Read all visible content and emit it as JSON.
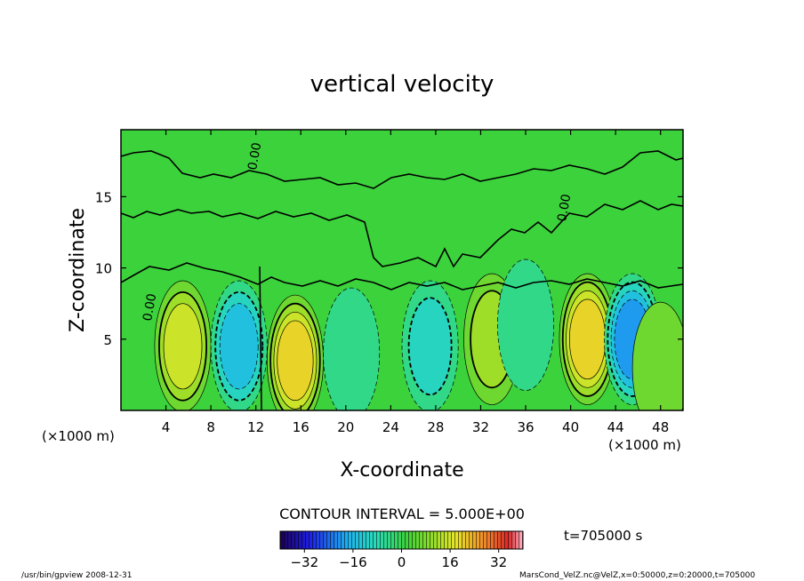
{
  "chart_data": {
    "type": "heatmap",
    "title": "vertical velocity",
    "xlabel": "X-coordinate",
    "ylabel": "Z-coordinate",
    "x_unit_left": "(×1000 m)",
    "x_unit_right": "(×1000 m)",
    "xlim": [
      0,
      50
    ],
    "ylim": [
      0,
      19.7
    ],
    "x_ticks": [
      4,
      8,
      12,
      16,
      20,
      24,
      28,
      32,
      36,
      40,
      44,
      48
    ],
    "y_ticks": [
      5,
      10,
      15
    ],
    "x_tick_labels": [
      "4",
      "8",
      "12",
      "16",
      "20",
      "24",
      "28",
      "32",
      "36",
      "40",
      "44",
      "48"
    ],
    "y_tick_labels": [
      "5",
      "10",
      "15"
    ],
    "contour_interval_text": "CONTOUR INTERVAL = 5.000E+00",
    "zero_contour_label": "0.00",
    "time_label": "t=705000 s",
    "colorbar": {
      "min": -40,
      "max": 40,
      "ticks": [
        -32,
        -16,
        0,
        16,
        32
      ],
      "tick_labels": [
        "−32",
        "−16",
        "0",
        "16",
        "32"
      ]
    },
    "cells": [
      {
        "x": 5.5,
        "z": 4.5,
        "w": 15
      },
      {
        "x": 10.5,
        "z": 4.5,
        "w": -15
      },
      {
        "x": 15.5,
        "z": 3.5,
        "w": 20
      },
      {
        "x": 20.5,
        "z": 4.0,
        "w": -5
      },
      {
        "x": 27.5,
        "z": 4.5,
        "w": -10
      },
      {
        "x": 33.0,
        "z": 5.0,
        "w": 10
      },
      {
        "x": 36.0,
        "z": 6.0,
        "w": -5
      },
      {
        "x": 41.5,
        "z": 5.0,
        "w": 20
      },
      {
        "x": 45.5,
        "z": 5.0,
        "w": -20
      },
      {
        "x": 48.0,
        "z": 3.0,
        "w": 5
      }
    ]
  },
  "footer": {
    "left": "/usr/bin/gpview   2008-12-31",
    "right": "MarsCond_VelZ.nc@VelZ,x=0:50000,z=0:20000,t=705000"
  }
}
